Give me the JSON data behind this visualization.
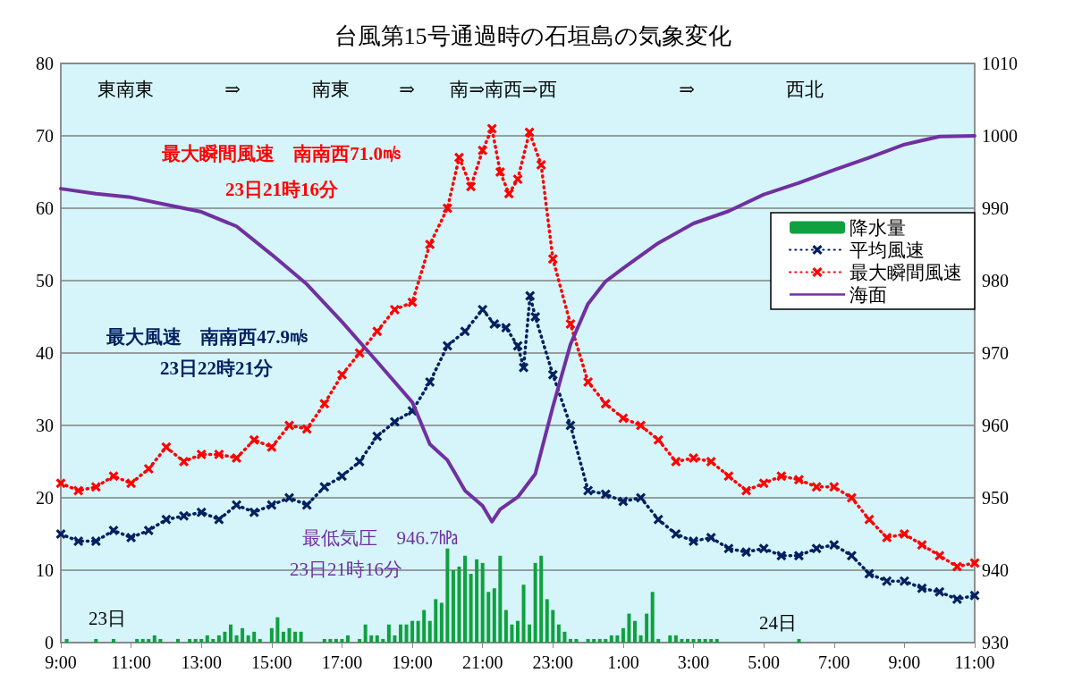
{
  "chart_data": {
    "type": "line",
    "title": "台風第15号通過時の石垣島の気象変化",
    "xlim": [
      "--08-23T09:00",
      "--08-24T11:00"
    ],
    "xticks": [
      {
        "value": "--08-23T09:00",
        "label": "9:00"
      },
      {
        "value": "--08-23T11:00",
        "label": "11:00"
      },
      {
        "value": "--08-23T13:00",
        "label": "13:00"
      },
      {
        "value": "--08-23T15:00",
        "label": "15:00"
      },
      {
        "value": "--08-23T17:00",
        "label": "17:00"
      },
      {
        "value": "--08-23T19:00",
        "label": "19:00"
      },
      {
        "value": "--08-23T21:00",
        "label": "21:00"
      },
      {
        "value": "--08-23T23:00",
        "label": "23:00"
      },
      {
        "value": "--08-24T01:00",
        "label": "1:00"
      },
      {
        "value": "--08-24T03:00",
        "label": "3:00"
      },
      {
        "value": "--08-24T05:00",
        "label": "5:00"
      },
      {
        "value": "--08-24T07:00",
        "label": "7:00"
      },
      {
        "value": "--08-24T09:00",
        "label": "9:00"
      },
      {
        "value": "--08-24T11:00",
        "label": "11:00"
      }
    ],
    "ylim": [
      0,
      80
    ],
    "yticks": [
      0,
      10,
      20,
      30,
      40,
      50,
      60,
      70,
      80
    ],
    "y2lim": [
      930,
      1010
    ],
    "y2ticks": [
      930,
      940,
      950,
      960,
      970,
      980,
      990,
      1000,
      1010
    ],
    "grid": "y",
    "legend": "right",
    "series": [
      {
        "name": "降水量",
        "type": "bar",
        "color": "#10a040",
        "x": [
          "--08-23T09:10",
          "--08-23T10:00",
          "--08-23T10:30",
          "--08-23T11:10",
          "--08-23T11:20",
          "--08-23T11:30",
          "--08-23T11:40",
          "--08-23T11:50",
          "--08-23T12:20",
          "--08-23T12:40",
          "--08-23T12:50",
          "--08-23T13:00",
          "--08-23T13:10",
          "--08-23T13:20",
          "--08-23T13:30",
          "--08-23T13:40",
          "--08-23T13:50",
          "--08-23T14:00",
          "--08-23T14:10",
          "--08-23T14:20",
          "--08-23T14:30",
          "--08-23T14:40",
          "--08-23T15:00",
          "--08-23T15:10",
          "--08-23T15:20",
          "--08-23T15:30",
          "--08-23T15:40",
          "--08-23T15:50",
          "--08-23T16:30",
          "--08-23T16:40",
          "--08-23T16:50",
          "--08-23T17:00",
          "--08-23T17:10",
          "--08-23T17:30",
          "--08-23T17:40",
          "--08-23T17:50",
          "--08-23T18:00",
          "--08-23T18:10",
          "--08-23T18:20",
          "--08-23T18:30",
          "--08-23T18:40",
          "--08-23T18:50",
          "--08-23T19:00",
          "--08-23T19:10",
          "--08-23T19:20",
          "--08-23T19:30",
          "--08-23T19:40",
          "--08-23T19:50",
          "--08-23T20:00",
          "--08-23T20:10",
          "--08-23T20:20",
          "--08-23T20:30",
          "--08-23T20:40",
          "--08-23T20:50",
          "--08-23T21:00",
          "--08-23T21:10",
          "--08-23T21:20",
          "--08-23T21:30",
          "--08-23T21:40",
          "--08-23T21:50",
          "--08-23T22:00",
          "--08-23T22:10",
          "--08-23T22:20",
          "--08-23T22:30",
          "--08-23T22:40",
          "--08-23T22:50",
          "--08-23T23:00",
          "--08-23T23:10",
          "--08-23T23:20",
          "--08-23T23:30",
          "--08-23T23:40",
          "--08-24T00:00",
          "--08-24T00:10",
          "--08-24T00:20",
          "--08-24T00:30",
          "--08-24T00:40",
          "--08-24T00:50",
          "--08-24T01:00",
          "--08-24T01:10",
          "--08-24T01:20",
          "--08-24T01:30",
          "--08-24T01:40",
          "--08-24T01:50",
          "--08-24T02:00",
          "--08-24T02:20",
          "--08-24T02:30",
          "--08-24T02:40",
          "--08-24T02:50",
          "--08-24T03:00",
          "--08-24T03:10",
          "--08-24T03:20",
          "--08-24T03:30",
          "--08-24T03:40",
          "--08-24T06:00"
        ],
        "values": [
          0.5,
          0.5,
          0.5,
          0.5,
          0.5,
          0.5,
          1,
          0.5,
          0.5,
          0.5,
          0.5,
          0.5,
          1,
          0.5,
          1,
          1.5,
          2.5,
          1,
          2,
          1,
          1.5,
          0.5,
          2,
          3.5,
          1.5,
          2,
          1.5,
          1.5,
          0.5,
          0.5,
          0.5,
          0.5,
          1,
          0.5,
          2.5,
          1,
          1,
          0.5,
          2.5,
          1,
          2.5,
          2.5,
          3,
          3,
          4.5,
          3,
          6,
          5.5,
          13,
          10,
          10.5,
          12,
          9.5,
          11.5,
          11,
          7,
          7.5,
          12,
          4.5,
          2.5,
          3,
          8,
          2.5,
          11,
          12,
          6,
          4.5,
          2.5,
          1.5,
          0.5,
          0.5,
          0.5,
          0.5,
          0.5,
          0.5,
          1,
          1,
          2,
          4,
          3,
          1,
          4,
          7,
          0.5,
          1,
          1,
          0.5,
          0.5,
          0.5,
          0.5,
          0.5,
          0.5,
          0.5,
          0.5
        ]
      },
      {
        "name": "平均風速",
        "color": "#002060",
        "marker": "cross",
        "line_style": "dotted",
        "x": [
          "--08-23T09:00",
          "--08-23T09:30",
          "--08-23T10:00",
          "--08-23T10:30",
          "--08-23T11:00",
          "--08-23T11:30",
          "--08-23T12:00",
          "--08-23T12:30",
          "--08-23T13:00",
          "--08-23T13:30",
          "--08-23T14:00",
          "--08-23T14:30",
          "--08-23T15:00",
          "--08-23T15:30",
          "--08-23T16:00",
          "--08-23T16:30",
          "--08-23T17:00",
          "--08-23T17:30",
          "--08-23T18:00",
          "--08-23T18:30",
          "--08-23T19:00",
          "--08-23T19:30",
          "--08-23T20:00",
          "--08-23T20:30",
          "--08-23T21:00",
          "--08-23T21:20",
          "--08-23T21:40",
          "--08-23T22:00",
          "--08-23T22:10",
          "--08-23T22:21",
          "--08-23T22:30",
          "--08-23T23:00",
          "--08-23T23:30",
          "--08-24T00:00",
          "--08-24T00:30",
          "--08-24T01:00",
          "--08-24T01:30",
          "--08-24T02:00",
          "--08-24T02:30",
          "--08-24T03:00",
          "--08-24T03:30",
          "--08-24T04:00",
          "--08-24T04:30",
          "--08-24T05:00",
          "--08-24T05:30",
          "--08-24T06:00",
          "--08-24T06:30",
          "--08-24T07:00",
          "--08-24T07:30",
          "--08-24T08:00",
          "--08-24T08:30",
          "--08-24T09:00",
          "--08-24T09:30",
          "--08-24T10:00",
          "--08-24T10:30",
          "--08-24T11:00"
        ],
        "values": [
          15,
          14,
          14,
          15.5,
          14.5,
          15.5,
          17,
          17.5,
          18,
          17,
          19,
          18,
          19,
          20,
          19,
          21.5,
          23,
          25,
          28.5,
          30.5,
          32,
          36,
          41,
          43,
          46,
          44,
          43.5,
          41,
          38,
          47.9,
          45,
          37,
          30,
          21,
          20.5,
          19.5,
          20,
          17,
          15,
          14,
          14.5,
          13,
          12.5,
          13,
          12,
          12,
          13,
          13.5,
          12,
          9.5,
          8.5,
          8.5,
          7.5,
          7,
          6,
          6.5
        ]
      },
      {
        "name": "最大瞬間風速",
        "color": "#ff0000",
        "marker": "cross",
        "line_style": "dotted",
        "x": [
          "--08-23T09:00",
          "--08-23T09:30",
          "--08-23T10:00",
          "--08-23T10:30",
          "--08-23T11:00",
          "--08-23T11:30",
          "--08-23T12:00",
          "--08-23T12:30",
          "--08-23T13:00",
          "--08-23T13:30",
          "--08-23T14:00",
          "--08-23T14:30",
          "--08-23T15:00",
          "--08-23T15:30",
          "--08-23T16:00",
          "--08-23T16:30",
          "--08-23T17:00",
          "--08-23T17:30",
          "--08-23T18:00",
          "--08-23T18:30",
          "--08-23T19:00",
          "--08-23T19:30",
          "--08-23T20:00",
          "--08-23T20:20",
          "--08-23T20:40",
          "--08-23T21:00",
          "--08-23T21:16",
          "--08-23T21:30",
          "--08-23T21:45",
          "--08-23T22:00",
          "--08-23T22:20",
          "--08-23T22:40",
          "--08-23T23:00",
          "--08-23T23:30",
          "--08-24T00:00",
          "--08-24T00:30",
          "--08-24T01:00",
          "--08-24T01:30",
          "--08-24T02:00",
          "--08-24T02:30",
          "--08-24T03:00",
          "--08-24T03:30",
          "--08-24T04:00",
          "--08-24T04:30",
          "--08-24T05:00",
          "--08-24T05:30",
          "--08-24T06:00",
          "--08-24T06:30",
          "--08-24T07:00",
          "--08-24T07:30",
          "--08-24T08:00",
          "--08-24T08:30",
          "--08-24T09:00",
          "--08-24T09:30",
          "--08-24T10:00",
          "--08-24T10:30",
          "--08-24T11:00"
        ],
        "values": [
          22,
          21,
          21.5,
          23,
          22,
          24,
          27,
          25,
          26,
          26,
          25.5,
          28,
          27,
          30,
          29.5,
          33,
          37,
          40,
          43,
          46,
          47,
          55,
          60,
          67,
          63,
          68,
          71.0,
          65,
          62,
          64,
          70.5,
          66,
          53,
          44,
          36,
          33,
          31,
          30,
          28,
          25,
          25.5,
          25,
          23,
          21,
          22,
          23,
          22.5,
          21.5,
          21.5,
          20,
          17,
          14.5,
          15,
          13.5,
          12,
          10.5,
          11
        ]
      },
      {
        "name": "海面",
        "color": "#7030a0",
        "axis": "y2",
        "marker": "none",
        "line_style": "solid",
        "x": [
          "--08-23T09:00",
          "--08-23T10:00",
          "--08-23T11:00",
          "--08-23T12:00",
          "--08-23T13:00",
          "--08-23T14:00",
          "--08-23T15:00",
          "--08-23T16:00",
          "--08-23T17:00",
          "--08-23T18:00",
          "--08-23T19:00",
          "--08-23T19:30",
          "--08-23T20:00",
          "--08-23T20:30",
          "--08-23T21:00",
          "--08-23T21:16",
          "--08-23T21:30",
          "--08-23T22:00",
          "--08-23T22:30",
          "--08-23T23:00",
          "--08-23T23:30",
          "--08-24T00:00",
          "--08-24T00:30",
          "--08-24T01:00",
          "--08-24T02:00",
          "--08-24T03:00",
          "--08-24T04:00",
          "--08-24T05:00",
          "--08-24T06:00",
          "--08-24T07:00",
          "--08-24T08:00",
          "--08-24T09:00",
          "--08-24T10:00",
          "--08-24T11:00"
        ],
        "values": [
          992.7,
          992,
          991.5,
          990.5,
          989.5,
          987.5,
          983.6,
          979.5,
          974.3,
          968.8,
          963.2,
          957.4,
          955.2,
          951,
          948.9,
          946.7,
          948.4,
          950.1,
          953.3,
          962.6,
          971.2,
          976.8,
          979.9,
          981.7,
          985.2,
          987.9,
          989.6,
          991.9,
          993.5,
          995.3,
          997,
          998.8,
          999.9,
          1000
        ]
      }
    ],
    "annotations": [
      "東南東",
      "⇒",
      "南東",
      "⇒",
      "南⇒南西⇒西",
      "⇒",
      "西北",
      "最大瞬間風速　南南西71.0㎧",
      "23日21時16分",
      "最大風速　南南西47.9㎧",
      "23日22時21分",
      "最低気圧　946.7㍱",
      "23日21時16分",
      "23日",
      "24日"
    ]
  }
}
